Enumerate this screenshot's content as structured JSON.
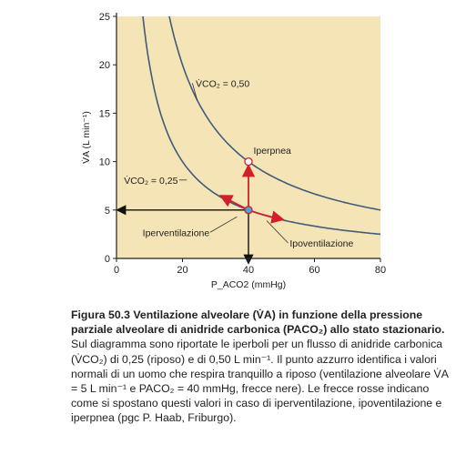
{
  "chart_data": {
    "type": "line",
    "xlabel": "P_ACO2 (mmHg)",
    "ylabel": "V̇A (L min⁻¹)",
    "xlim": [
      0,
      80
    ],
    "ylim": [
      0,
      25
    ],
    "x_ticks": [
      0,
      20,
      40,
      60,
      80
    ],
    "y_ticks": [
      0,
      5,
      10,
      15,
      20,
      25
    ],
    "grid": false,
    "plot_bg": "#f4e4b6",
    "series": [
      {
        "name": "V̇CO2 = 0,25",
        "color": "#3f5d7a",
        "x": [
          8,
          10,
          12,
          15,
          20,
          25,
          30,
          35,
          40,
          50,
          60,
          70,
          80
        ],
        "values": [
          25,
          20,
          16.7,
          13.3,
          10,
          8,
          6.7,
          5.7,
          5,
          4,
          3.3,
          2.9,
          2.5
        ]
      },
      {
        "name": "V̇CO2 = 0,50",
        "color": "#3f5d7a",
        "x": [
          16,
          20,
          25,
          30,
          35,
          40,
          50,
          60,
          70,
          80
        ],
        "values": [
          25,
          20,
          16,
          13.3,
          11.4,
          10,
          8,
          6.7,
          5.7,
          5
        ]
      }
    ],
    "points": [
      {
        "name": "normal",
        "x": 40,
        "y": 5,
        "color": "#45a6d8"
      },
      {
        "name": "Iperpnea",
        "x": 40,
        "y": 10,
        "color": "#ffffff"
      }
    ],
    "annotations": {
      "curve_label_high": "V̇CO₂ = 0,50",
      "curve_label_low": "V̇CO₂ = 0,25",
      "iperpnea": "Iperpnea",
      "iperventilazione": "Iperventilazione",
      "ipoventilazione": "Ipoventilazione"
    },
    "colors": {
      "red_arrow": "#d0202a",
      "black_arrow": "#111111"
    }
  },
  "caption": {
    "figure_title": "Figura 50.3  Ventilazione alveolare (V̇A) in funzione della pressione parziale alveolare di anidride carbonica (PACO₂) allo stato stazionario.",
    "body": " Sul diagramma sono riportate le iperboli per un flusso di anidride carbonica (V̇CO₂) di 0,25 (riposo) e di 0,50 L min⁻¹. Il punto azzurro identifica i valori normali di un uomo che respira tranquillo a riposo (ventilazione alveolare V̇A = 5 L min⁻¹ e PACO₂ = 40 mmHg, frecce nere). Le frecce rosse indicano come si spostano questi valori in caso di iperventilazione, ipoventilazione e iperpnea (pgc P. Haab, Friburgo)."
  }
}
